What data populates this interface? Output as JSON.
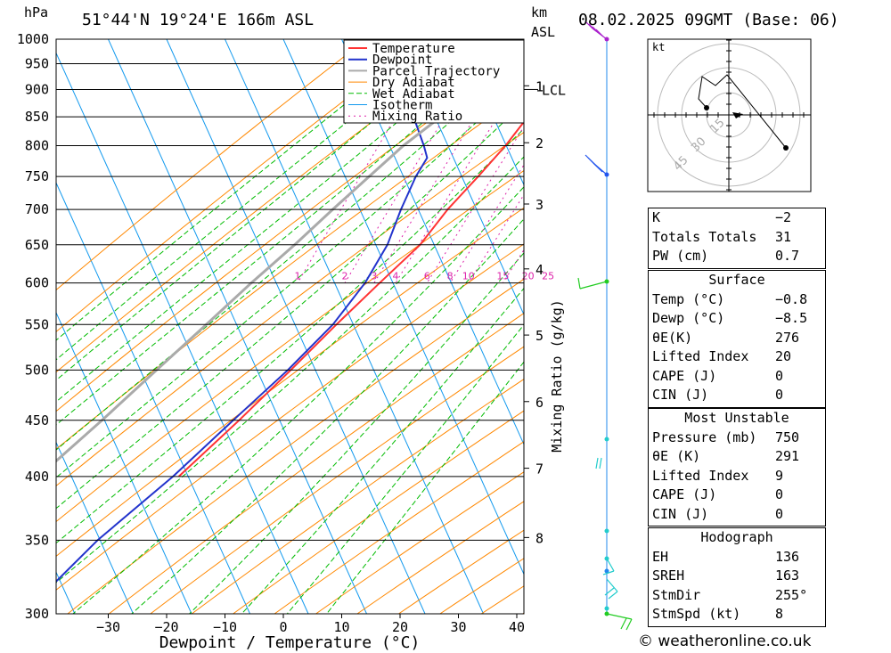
{
  "header": {
    "hpa_label": "hPa",
    "location": "51°44'N 19°24'E 166m ASL",
    "km_label": "km",
    "asl_label": "ASL",
    "datetime": "08.02.2025 09GMT (Base: 06)"
  },
  "copyright": "© weatheronline.co.uk",
  "chart_data": {
    "type": "line",
    "subtype": "skew-T log-P",
    "xlabel": "Dewpoint / Temperature (°C)",
    "ylabel_right": "Mixing Ratio (g/kg)",
    "x_ticks": [
      -30,
      -20,
      -10,
      0,
      10,
      20,
      30,
      40
    ],
    "pressure_levels": [
      300,
      350,
      400,
      450,
      500,
      550,
      600,
      650,
      700,
      750,
      800,
      850,
      900,
      950,
      1000
    ],
    "km_ticks": [
      {
        "label": "8",
        "pressure": 352
      },
      {
        "label": "7",
        "pressure": 407
      },
      {
        "label": "6",
        "pressure": 468
      },
      {
        "label": "5",
        "pressure": 538
      },
      {
        "label": "4",
        "pressure": 618
      },
      {
        "label": "3",
        "pressure": 708
      },
      {
        "label": "2",
        "pressure": 805
      },
      {
        "label": "1",
        "pressure": 907
      }
    ],
    "lcl": {
      "label": "LCL",
      "pressure": 900
    },
    "mixing_ratio_labels": [
      "1",
      "2",
      "3",
      "4",
      "6",
      "8",
      "10",
      "15",
      "20",
      "25"
    ],
    "legend": [
      "Temperature",
      "Dewpoint",
      "Parcel Trajectory",
      "Dry Adiabat",
      "Wet Adiabat",
      "Isotherm",
      "Mixing Ratio"
    ],
    "legend_colors": [
      "#ff3333",
      "#2233cc",
      "#aaaaaa",
      "#ff8800",
      "#00bb00",
      "#1199ee",
      "#dd22aa"
    ],
    "series": [
      {
        "name": "Temperature",
        "color": "#ff3333",
        "points": [
          [
            1000,
            -0.8
          ],
          [
            975,
            -1.5
          ],
          [
            960,
            -2.0
          ],
          [
            940,
            1.0
          ],
          [
            920,
            2.5
          ],
          [
            900,
            3.4
          ],
          [
            875,
            3.5
          ],
          [
            850,
            3.6
          ],
          [
            800,
            2.0
          ],
          [
            750,
            -0.3
          ],
          [
            700,
            -3.0
          ],
          [
            650,
            -5.0
          ],
          [
            600,
            -9.0
          ],
          [
            550,
            -13.2
          ],
          [
            500,
            -17.5
          ],
          [
            450,
            -22.5
          ],
          [
            400,
            -28.5
          ]
        ]
      },
      {
        "name": "Dewpoint",
        "color": "#2233cc",
        "points": [
          [
            1000,
            -8.5
          ],
          [
            960,
            -9.2
          ],
          [
            930,
            -14.0
          ],
          [
            900,
            -19.0
          ],
          [
            850,
            -16.0
          ],
          [
            800,
            -12.0
          ],
          [
            780,
            -10.5
          ],
          [
            750,
            -11.0
          ],
          [
            700,
            -11.0
          ],
          [
            650,
            -10.6
          ],
          [
            600,
            -11.5
          ],
          [
            550,
            -13.8
          ],
          [
            500,
            -18.0
          ],
          [
            450,
            -23.5
          ],
          [
            400,
            -29.5
          ],
          [
            350,
            -37.5
          ],
          [
            300,
            -44.5
          ]
        ]
      },
      {
        "name": "Parcel Trajectory",
        "color": "#aaaaaa",
        "points": [
          [
            1000,
            -0.8
          ],
          [
            950,
            -3.8
          ],
          [
            900,
            -8.0
          ],
          [
            850,
            -11.3
          ],
          [
            800,
            -15.5
          ],
          [
            750,
            -19.0
          ],
          [
            700,
            -22.7
          ],
          [
            650,
            -26.5
          ],
          [
            600,
            -31.0
          ],
          [
            550,
            -35.5
          ],
          [
            500,
            -40.5
          ],
          [
            450,
            -46.0
          ],
          [
            400,
            -52.5
          ],
          [
            350,
            -59.5
          ],
          [
            300,
            -66.0
          ]
        ]
      }
    ]
  },
  "hodograph": {
    "unit": "kt",
    "ring_labels": [
      "15",
      "30",
      "45"
    ]
  },
  "tables": {
    "indices": [
      {
        "label": "K",
        "value": "-2"
      },
      {
        "label": "Totals Totals",
        "value": "31"
      },
      {
        "label": "PW (cm)",
        "value": "0.7"
      }
    ],
    "surface": {
      "title": "Surface",
      "rows": [
        {
          "label": "Temp (°C)",
          "value": "-0.8"
        },
        {
          "label": "Dewp (°C)",
          "value": "-8.5"
        },
        {
          "label": "θE(K)",
          "value": "276"
        },
        {
          "label": "Lifted Index",
          "value": "20"
        },
        {
          "label": "CAPE (J)",
          "value": "0"
        },
        {
          "label": "CIN (J)",
          "value": "0"
        }
      ]
    },
    "most_unstable": {
      "title": "Most Unstable",
      "rows": [
        {
          "label": "Pressure (mb)",
          "value": "750"
        },
        {
          "label": "θE (K)",
          "value": "291"
        },
        {
          "label": "Lifted Index",
          "value": "9"
        },
        {
          "label": "CAPE (J)",
          "value": "0"
        },
        {
          "label": "CIN (J)",
          "value": "0"
        }
      ]
    },
    "hodograph": {
      "title": "Hodograph",
      "rows": [
        {
          "label": "EH",
          "value": "136"
        },
        {
          "label": "SREH",
          "value": "163"
        },
        {
          "label": "StmDir",
          "value": "255°"
        },
        {
          "label": "StmSpd (kt)",
          "value": "8"
        }
      ]
    }
  }
}
